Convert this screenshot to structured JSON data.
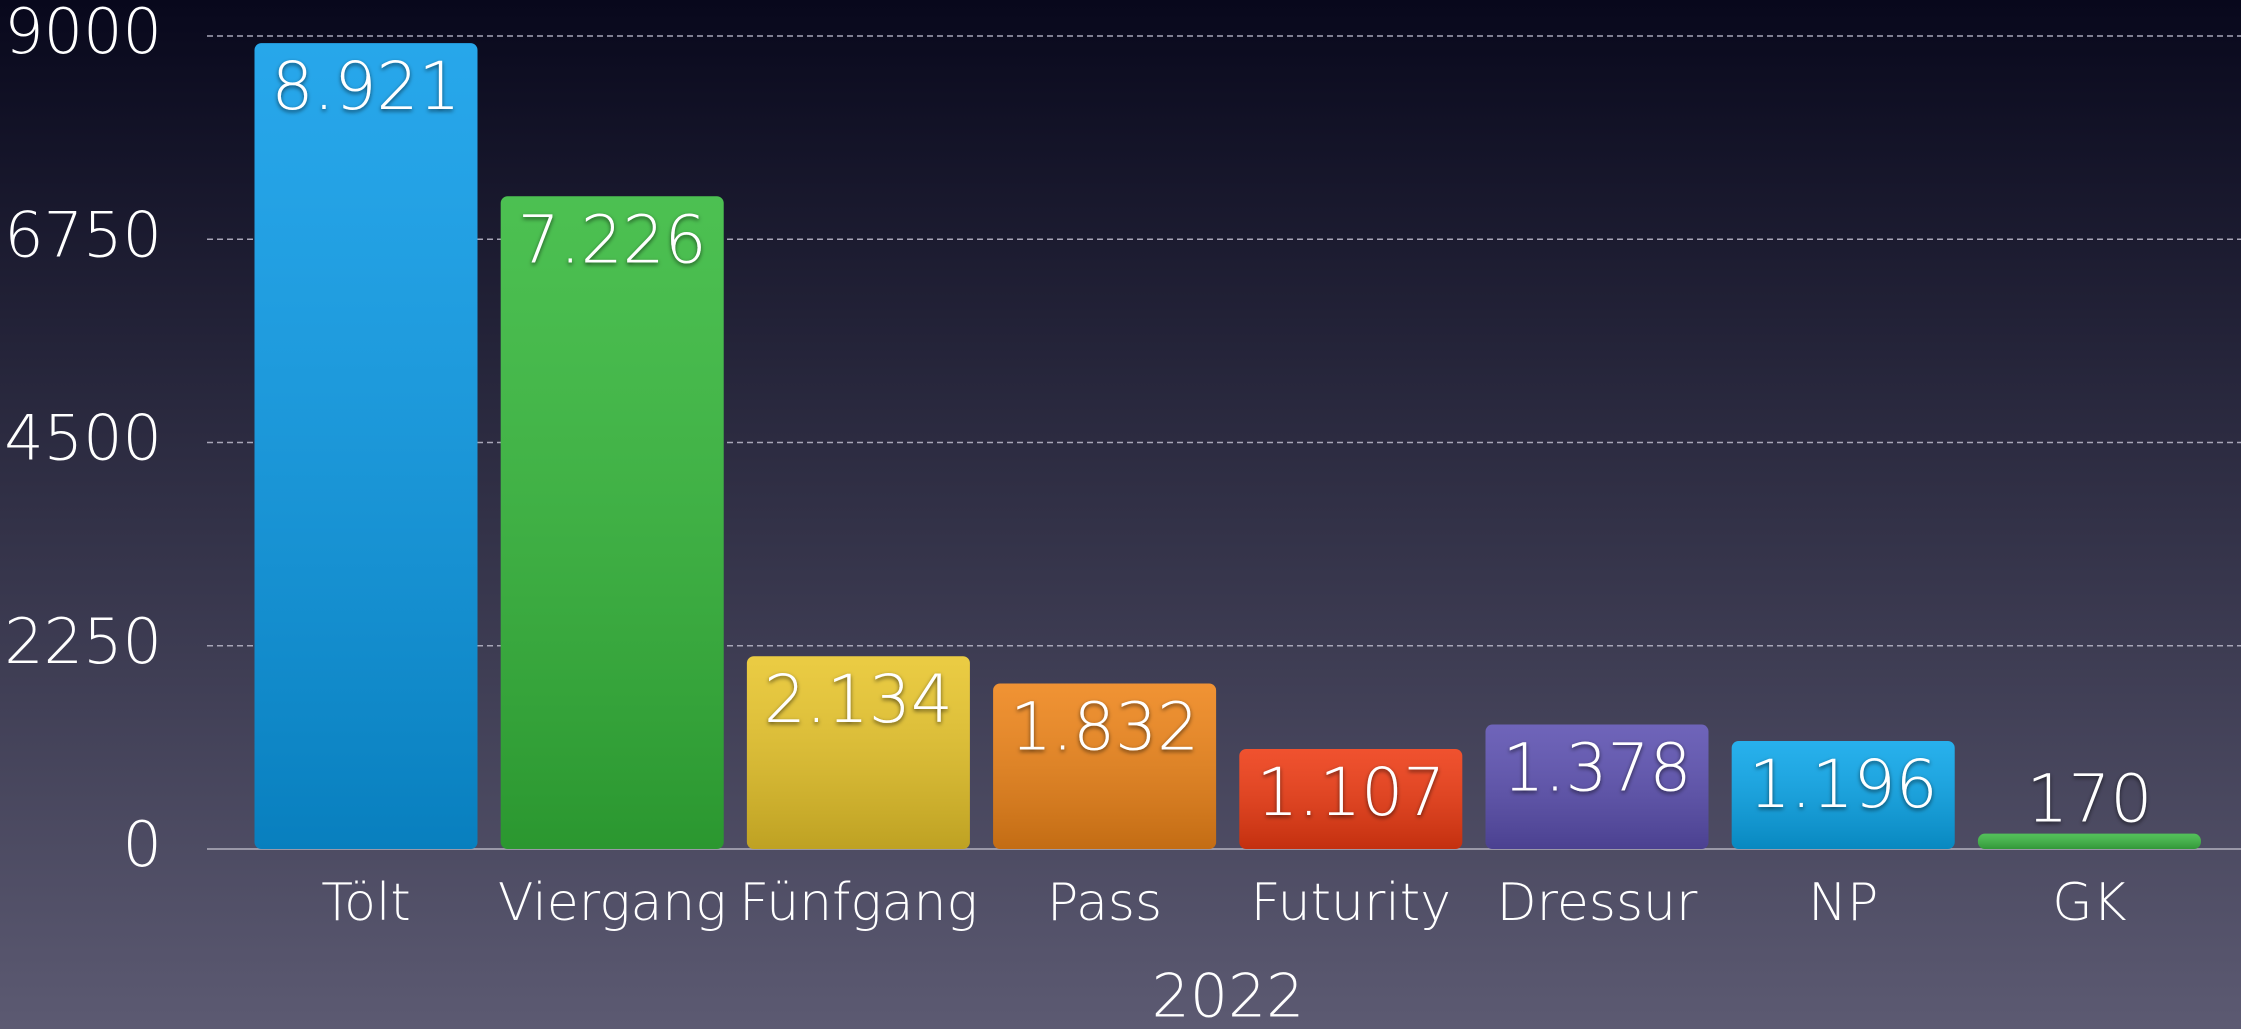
{
  "chart_data": {
    "type": "bar",
    "x_label": "2022",
    "categories": [
      "Tölt",
      "Viergang",
      "Fünfgang",
      "Pass",
      "Futurity",
      "Dressur",
      "NP",
      "GK"
    ],
    "values": [
      8921,
      7226,
      2134,
      1832,
      1107,
      1378,
      1196,
      170
    ],
    "value_labels": [
      "8.921",
      "7.226",
      "2.134",
      "1.832",
      "1.107",
      "1.378",
      "1.196",
      "170"
    ],
    "colors": [
      "#0a9be8",
      "#34b83a",
      "#e8c52a",
      "#ee8418",
      "#ee3a12",
      "#5b4fb0",
      "#0aa6ea",
      "#3cb844"
    ],
    "ylim": [
      0,
      9000
    ],
    "yticks": [
      0,
      2250,
      4500,
      6750,
      9000
    ],
    "grid": true
  }
}
